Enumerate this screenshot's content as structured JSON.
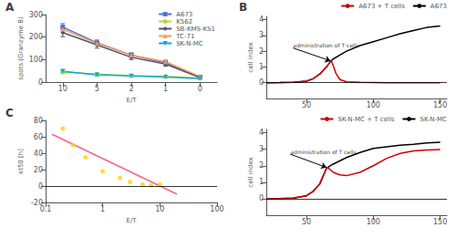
{
  "chart_data": [
    {
      "type": "line",
      "title": "A",
      "xlabel": "E/T",
      "ylabel": "spots (Granzyme B)",
      "categories": [
        "10",
        "5",
        "2",
        "1",
        "0"
      ],
      "series": [
        {
          "name": "A673",
          "marker": "square",
          "values": [
            245,
            175,
            120,
            85,
            22
          ],
          "err": [
            15,
            12,
            10,
            12,
            5
          ]
        },
        {
          "name": "K562",
          "marker": "circle",
          "values": [
            45,
            35,
            28,
            25,
            18
          ],
          "err": [
            8,
            6,
            5,
            5,
            4
          ]
        },
        {
          "name": "SB-KMS-KS1",
          "marker": "diamond",
          "values": [
            220,
            165,
            110,
            80,
            20
          ],
          "err": [
            18,
            14,
            10,
            10,
            4
          ]
        },
        {
          "name": "TC-71",
          "marker": "triangle",
          "values": [
            235,
            172,
            120,
            90,
            25
          ],
          "err": [
            12,
            10,
            8,
            8,
            5
          ]
        },
        {
          "name": "SK-N-MC",
          "marker": "triangle_down",
          "values": [
            48,
            32,
            27,
            22,
            15
          ],
          "err": [
            8,
            5,
            5,
            4,
            3
          ]
        }
      ],
      "ylim": [
        0,
        300
      ],
      "yticks": [
        0,
        100,
        200,
        300
      ],
      "legend": "upper right",
      "grid": false
    },
    {
      "type": "scatter",
      "title": "C",
      "xlabel": "E/T",
      "ylabel": "kt50 [h]",
      "log": "x",
      "series": [
        {
          "type": "scatter",
          "marker": "circle",
          "x": [
            0.2,
            0.3,
            0.5,
            1.0,
            2.0,
            3.0,
            5.0,
            7.0,
            10.0
          ],
          "values": [
            70,
            50,
            35,
            18,
            10,
            5,
            2,
            1,
            2
          ]
        },
        {
          "type": "line",
          "x": [
            0.13,
            20
          ],
          "values": [
            63,
            -10
          ]
        }
      ],
      "reference_line": 0,
      "xlim": [
        0.1,
        100
      ],
      "xticks": [
        0.1,
        1,
        10,
        100
      ],
      "ylim": [
        -20,
        80
      ],
      "yticks": [
        -20,
        0,
        20,
        40,
        60,
        80
      ],
      "grid": false
    },
    {
      "type": "line",
      "title": "B",
      "ylabel": "cell index",
      "series": [
        {
          "name": "A673",
          "color": "#000000",
          "x": [
            20,
            30,
            40,
            50,
            55,
            60,
            65,
            68,
            70,
            75,
            80,
            90,
            100,
            110,
            120,
            130,
            140,
            150
          ],
          "values": [
            0.0,
            0.01,
            0.03,
            0.1,
            0.25,
            0.55,
            1.0,
            1.35,
            1.5,
            1.75,
            2.0,
            2.35,
            2.6,
            2.85,
            3.1,
            3.3,
            3.5,
            3.6
          ]
        },
        {
          "name": "A673 + T cells",
          "color": "#cc0000",
          "x": [
            20,
            30,
            40,
            50,
            55,
            60,
            65,
            68,
            68.5,
            69,
            70,
            72,
            75,
            80,
            90,
            100,
            110,
            120,
            130,
            140,
            150
          ],
          "values": [
            0.0,
            0.01,
            0.03,
            0.1,
            0.25,
            0.55,
            1.0,
            1.35,
            1.38,
            1.3,
            1.1,
            0.6,
            0.2,
            0.05,
            0.02,
            0.01,
            0.0,
            0.0,
            0.0,
            0.0,
            0.0
          ]
        }
      ],
      "reference_line": 0,
      "annotations": [
        {
          "text": "administration of T cells",
          "x": 68,
          "y": 1.38,
          "text_x": 40,
          "text_y": 2.2
        }
      ],
      "xlim": [
        20,
        155
      ],
      "xticks": [
        50,
        100,
        150
      ],
      "ylim": [
        -1,
        4.2
      ],
      "yticks": [
        0,
        1,
        2,
        3,
        4
      ],
      "legend": "upper right",
      "grid": false
    },
    {
      "type": "line",
      "ylabel": "cell index",
      "series": [
        {
          "name": "SK-N-MC",
          "color": "#000000",
          "x": [
            20,
            30,
            40,
            50,
            55,
            60,
            65,
            70,
            80,
            90,
            100,
            110,
            120,
            130,
            140,
            150
          ],
          "values": [
            0.0,
            0.01,
            0.04,
            0.18,
            0.45,
            0.9,
            1.85,
            2.1,
            2.5,
            2.8,
            3.05,
            3.15,
            3.25,
            3.3,
            3.38,
            3.42
          ]
        },
        {
          "name": "SK-N-MC + T cells",
          "color": "#cc0000",
          "x": [
            20,
            30,
            40,
            50,
            55,
            60,
            65,
            65.5,
            66,
            67,
            68,
            70,
            75,
            80,
            90,
            100,
            110,
            120,
            130,
            140,
            150
          ],
          "values": [
            0.0,
            0.01,
            0.04,
            0.18,
            0.45,
            0.9,
            1.85,
            1.9,
            1.88,
            1.82,
            1.75,
            1.6,
            1.45,
            1.4,
            1.6,
            2.0,
            2.45,
            2.75,
            2.9,
            2.95,
            2.98
          ]
        }
      ],
      "reference_line": 0,
      "annotations": [
        {
          "text": "administration of T cells",
          "x": 65,
          "y": 1.9,
          "text_x": 38,
          "text_y": 2.7
        }
      ],
      "xlim": [
        20,
        155
      ],
      "xticks": [
        50,
        100,
        150
      ],
      "ylim": [
        -1,
        4.2
      ],
      "yticks": [
        0,
        1,
        2,
        3,
        4
      ],
      "legend": "upper right",
      "grid": false
    }
  ]
}
